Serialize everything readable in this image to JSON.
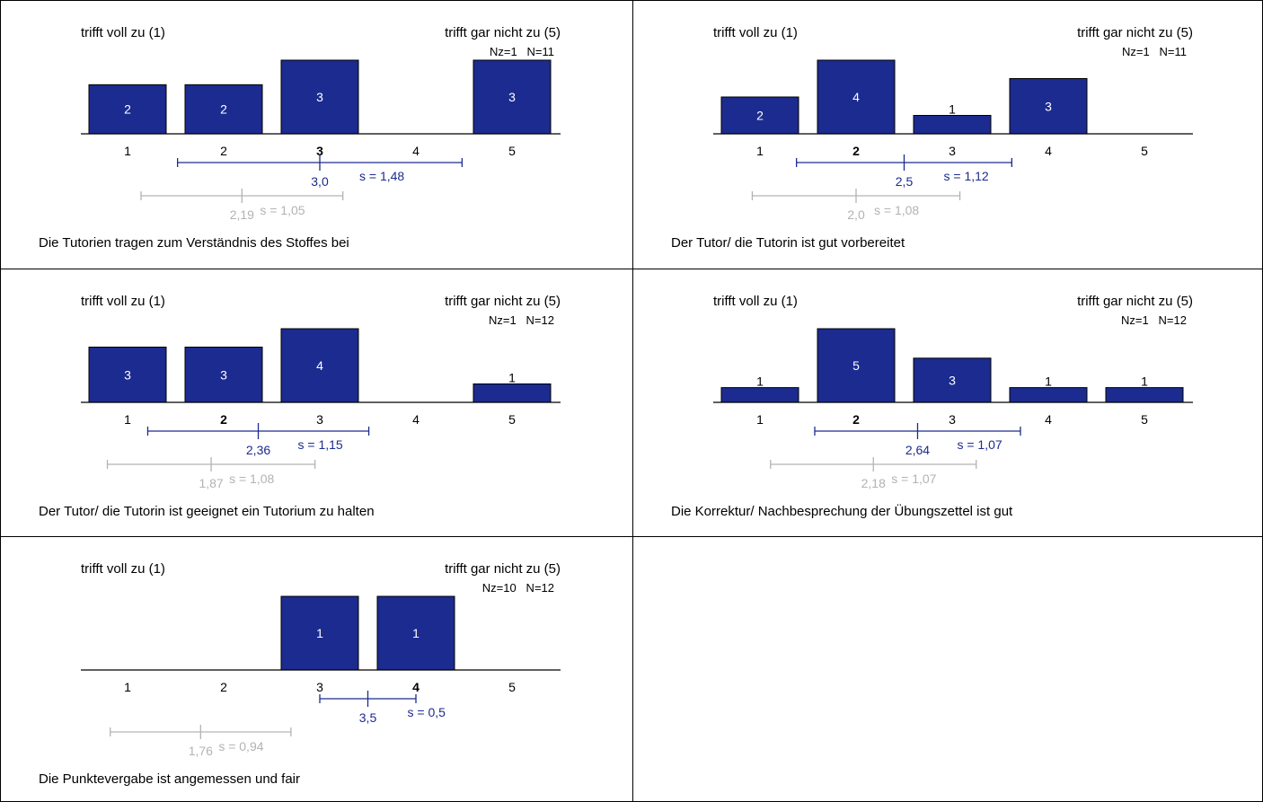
{
  "colors": {
    "bar": "#1c2b8f",
    "bar_label_inside": "#ffffff",
    "bar_label_outside": "#000000",
    "mean_line": "#1c2b8f",
    "comparison_line": "#b3b3b3"
  },
  "chart_data": [
    {
      "type": "bar",
      "question": "Die Tutorien tragen zum Verständnis des Stoffes bei",
      "label_left": "trifft voll zu (1)",
      "label_right": "trifft  gar nicht zu (5)",
      "counts_label": "Nz=1   N=11",
      "categories": [
        "1",
        "2",
        "3",
        "4",
        "5"
      ],
      "values": [
        2,
        2,
        3,
        0,
        3
      ],
      "bold_category": "3",
      "mean": 3.0,
      "mean_label": "3,0",
      "s_label": "s = 1,48",
      "comparison_mean": 2.19,
      "comparison_mean_label": "2,19",
      "comparison_s_label": "s = 1,05"
    },
    {
      "type": "bar",
      "question": "Der Tutor/ die Tutorin ist gut vorbereitet",
      "label_left": "trifft voll zu (1)",
      "label_right": "trifft  gar nicht zu (5)",
      "counts_label": "Nz=1   N=11",
      "categories": [
        "1",
        "2",
        "3",
        "4",
        "5"
      ],
      "values": [
        2,
        4,
        1,
        3,
        0
      ],
      "bold_category": "2",
      "mean": 2.5,
      "mean_label": "2,5",
      "s_label": "s = 1,12",
      "comparison_mean": 2.0,
      "comparison_mean_label": "2,0",
      "comparison_s_label": "s = 1,08"
    },
    {
      "type": "bar",
      "question": "Der Tutor/ die Tutorin ist geeignet ein Tutorium zu halten",
      "label_left": "trifft voll zu (1)",
      "label_right": "trifft  gar nicht zu (5)",
      "counts_label": "Nz=1   N=12",
      "categories": [
        "1",
        "2",
        "3",
        "4",
        "5"
      ],
      "values": [
        3,
        3,
        4,
        0,
        1
      ],
      "bold_category": "2",
      "mean": 2.36,
      "mean_label": "2,36",
      "s_label": "s = 1,15",
      "comparison_mean": 1.87,
      "comparison_mean_label": "1,87",
      "comparison_s_label": "s = 1,08"
    },
    {
      "type": "bar",
      "question": "Die Korrektur/ Nachbesprechung der Übungszettel ist gut",
      "label_left": "trifft voll zu (1)",
      "label_right": "trifft  gar nicht zu (5)",
      "counts_label": "Nz=1   N=12",
      "categories": [
        "1",
        "2",
        "3",
        "4",
        "5"
      ],
      "values": [
        1,
        5,
        3,
        1,
        1
      ],
      "bold_category": "2",
      "mean": 2.64,
      "mean_label": "2,64",
      "s_label": "s = 1,07",
      "comparison_mean": 2.18,
      "comparison_mean_label": "2,18",
      "comparison_s_label": "s = 1,07"
    },
    {
      "type": "bar",
      "question": "Die Punktevergabe ist angemessen und fair",
      "label_left": "trifft voll zu (1)",
      "label_right": "trifft  gar nicht zu (5)",
      "counts_label": "Nz=10   N=12",
      "categories": [
        "1",
        "2",
        "3",
        "4",
        "5"
      ],
      "values": [
        0,
        0,
        1,
        1,
        0
      ],
      "bold_category": "4",
      "mean": 3.5,
      "mean_label": "3,5",
      "s_label": "s = 0,5",
      "comparison_mean": 1.76,
      "comparison_mean_label": "1,76",
      "comparison_s_label": "s = 0,94"
    }
  ]
}
